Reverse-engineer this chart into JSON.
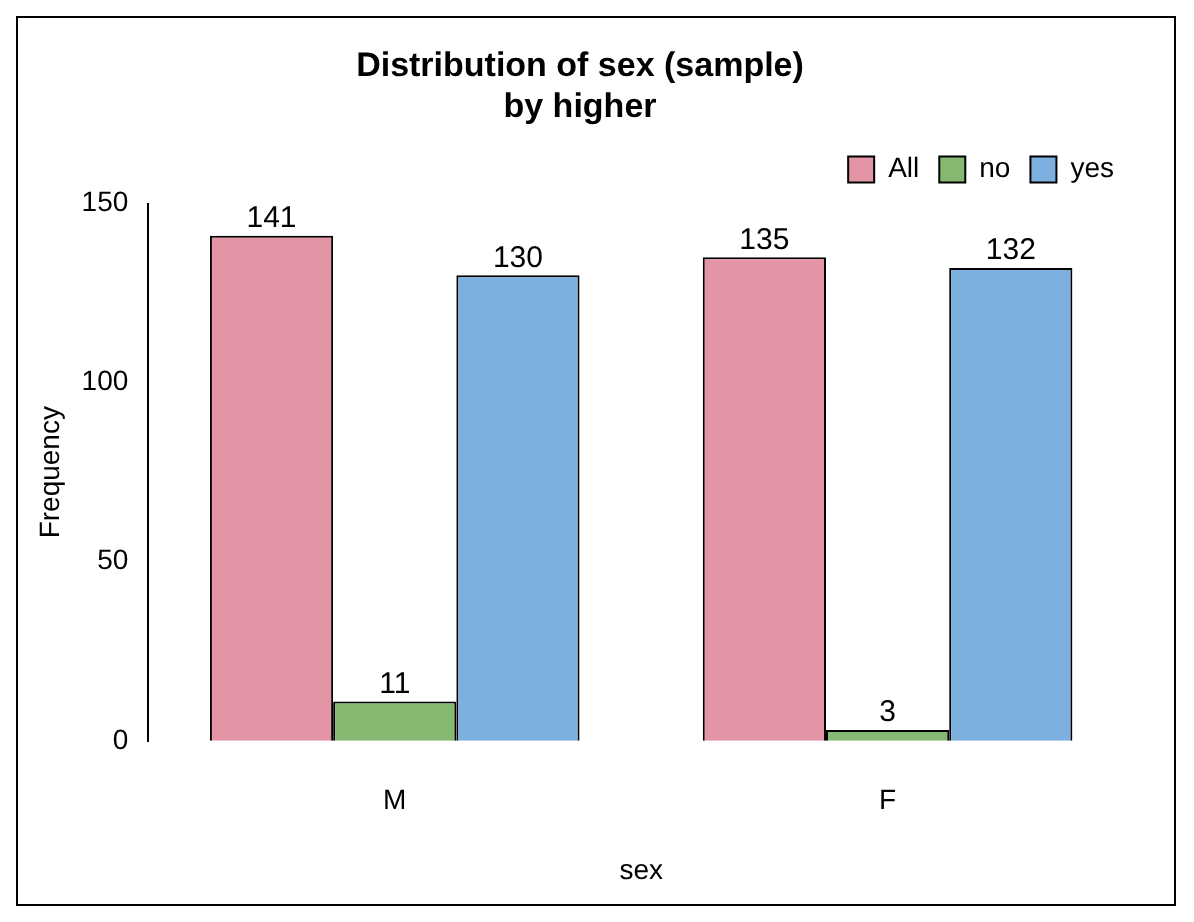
{
  "chart_data": {
    "type": "bar",
    "title": "Distribution of sex (sample)\nby higher",
    "xlabel": "sex",
    "ylabel": "Frequency",
    "categories": [
      "M",
      "F"
    ],
    "series": [
      {
        "name": "All",
        "color": "#e395a5",
        "values": [
          141,
          135
        ]
      },
      {
        "name": "no",
        "color": "#85b870",
        "values": [
          11,
          3
        ]
      },
      {
        "name": "yes",
        "color": "#7eb0df",
        "values": [
          130,
          132
        ]
      }
    ],
    "ylim": [
      0,
      150
    ],
    "yticks": [
      0,
      50,
      100,
      150
    ],
    "grid": false,
    "legend": "top right",
    "data_labels": true
  }
}
